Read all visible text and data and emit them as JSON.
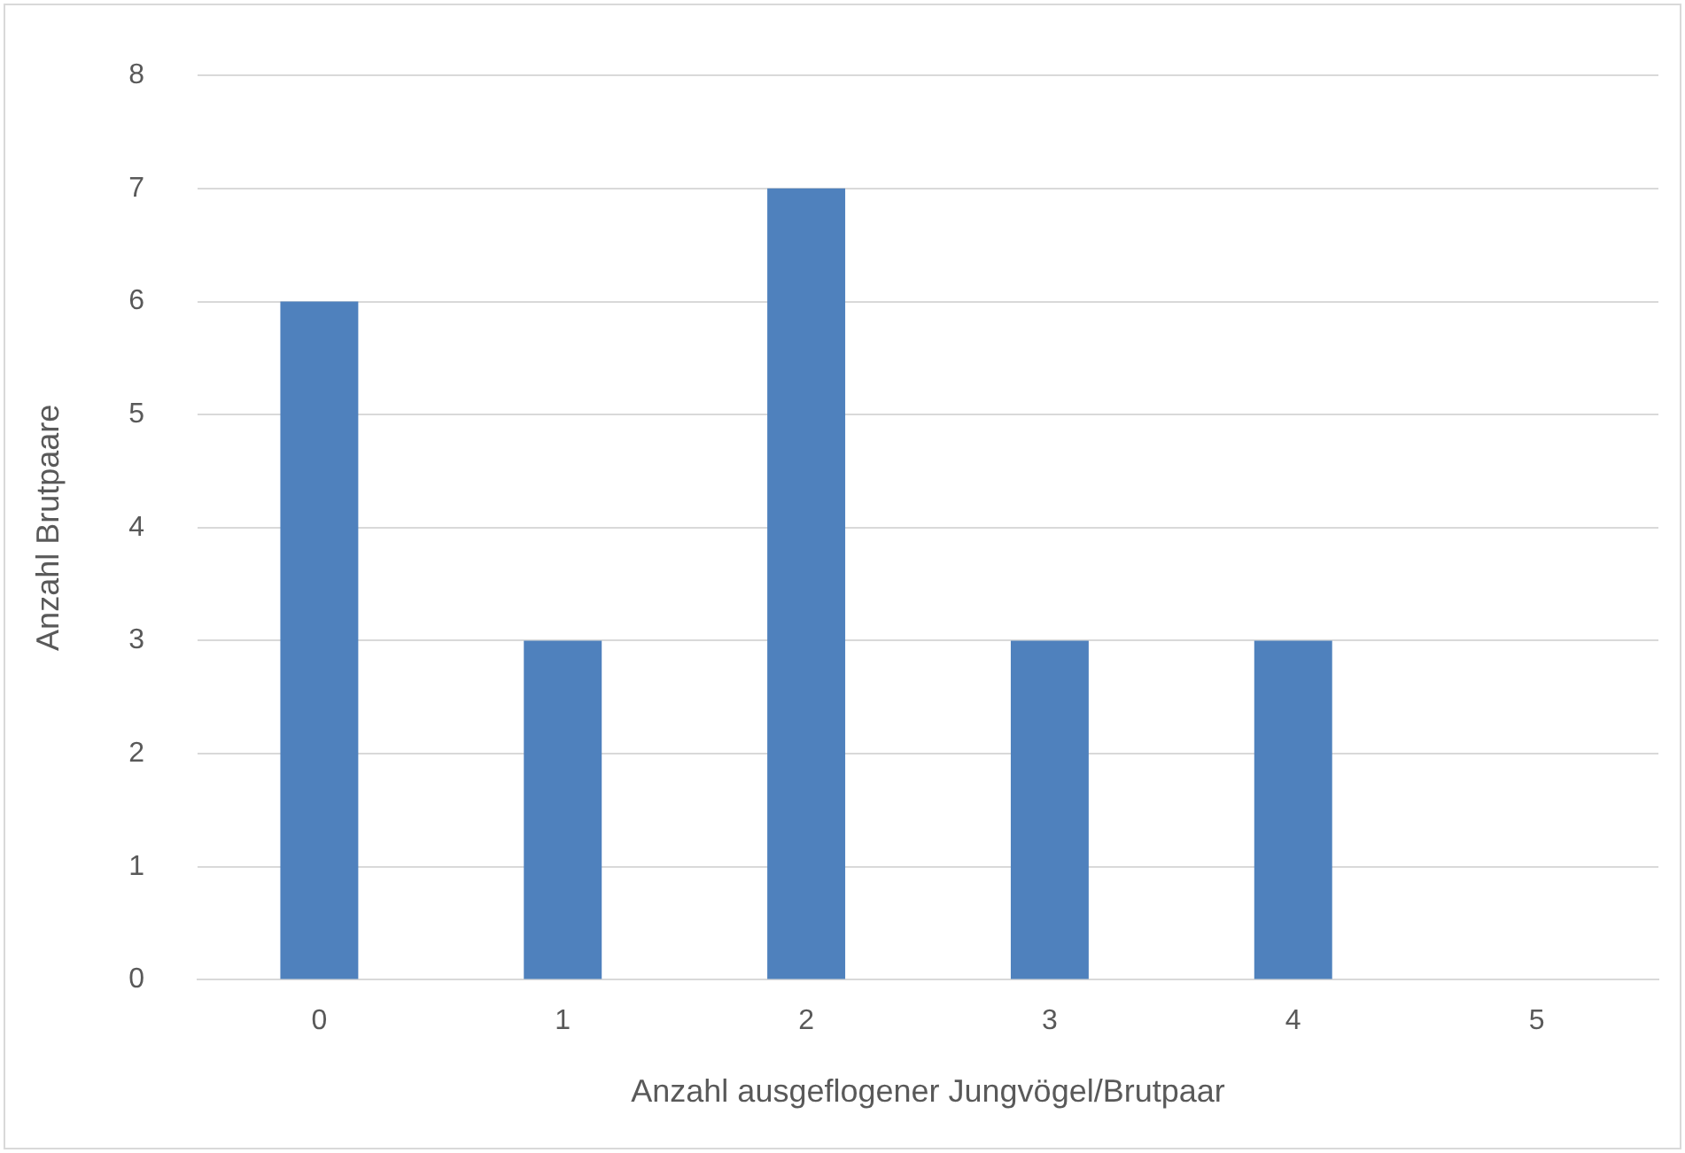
{
  "chart_data": {
    "type": "bar",
    "xlabel": "Anzahl ausgeflogener Jungvögel/Brutpaar",
    "ylabel": "Anzahl Brutpaare",
    "categories": [
      "0",
      "1",
      "2",
      "3",
      "4",
      "5"
    ],
    "values": [
      6,
      3,
      7,
      3,
      3,
      0
    ],
    "color": "#4f81bd",
    "ylim": [
      0,
      8
    ],
    "yticks": [
      0,
      1,
      2,
      3,
      4,
      5,
      6,
      7,
      8
    ],
    "grid": "y",
    "legend": false
  }
}
